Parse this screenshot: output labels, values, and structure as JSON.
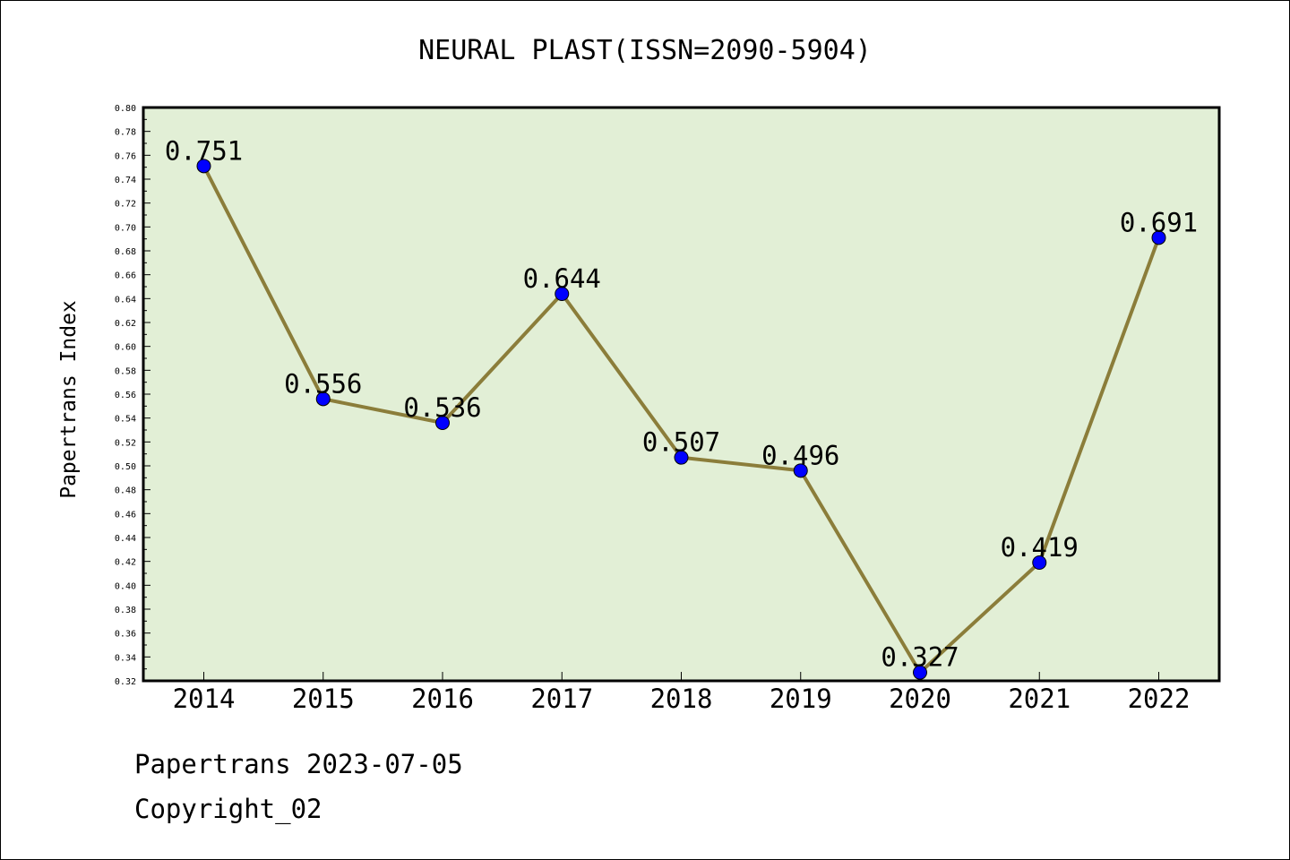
{
  "chart_data": {
    "type": "line",
    "title": "NEURAL PLAST(ISSN=2090-5904)",
    "ylabel": "Papertrans Index",
    "xlabel": "",
    "categories": [
      "2014",
      "2015",
      "2016",
      "2017",
      "2018",
      "2019",
      "2020",
      "2021",
      "2022"
    ],
    "values": [
      0.751,
      0.556,
      0.536,
      0.644,
      0.507,
      0.496,
      0.327,
      0.419,
      0.691
    ],
    "data_labels": [
      "0.751",
      "0.556",
      "0.536",
      "0.644",
      "0.507",
      "0.496",
      "0.327",
      "0.419",
      "0.691"
    ],
    "ylim": [
      0.32,
      0.8
    ],
    "yticks": [
      "0.32",
      "0.34",
      "0.36",
      "0.38",
      "0.40",
      "0.42",
      "0.44",
      "0.46",
      "0.48",
      "0.50",
      "0.52",
      "0.54",
      "0.56",
      "0.58",
      "0.60",
      "0.62",
      "0.64",
      "0.66",
      "0.68",
      "0.70",
      "0.72",
      "0.74",
      "0.76",
      "0.78",
      "0.80"
    ],
    "grid": false,
    "colors": {
      "plot_background": "#e2efd6",
      "line": "#8b7d3a",
      "marker": "#0000ff"
    }
  },
  "footer": {
    "line1": "Papertrans 2023-07-05",
    "line2": "Copyright_02"
  }
}
